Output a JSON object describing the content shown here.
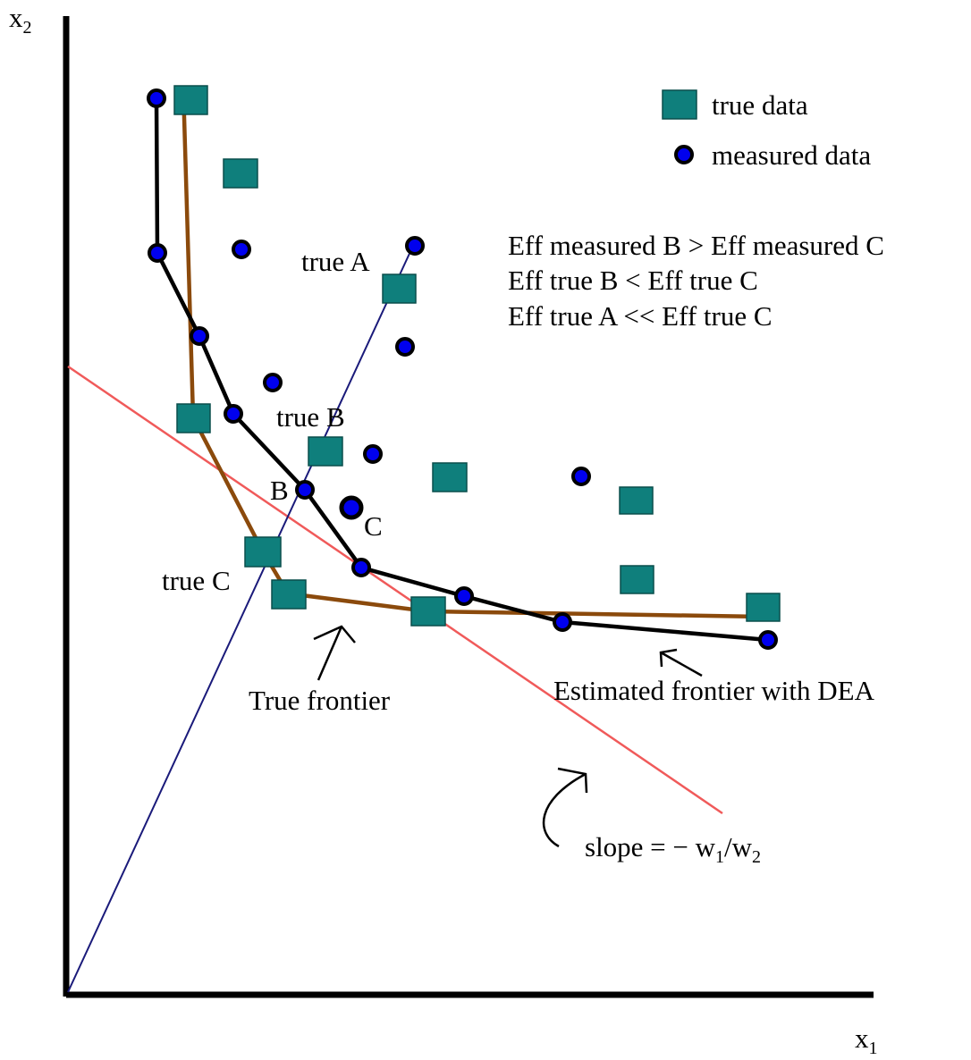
{
  "axes": {
    "x_label": "x",
    "x_subscript": "1",
    "y_label": "x",
    "y_subscript": "2"
  },
  "legend": {
    "true_data": "true data",
    "measured_data": "measured data"
  },
  "statements": [
    "Eff measured B > Eff measured C",
    "Eff true B < Eff true C",
    "Eff true A << Eff true C"
  ],
  "labels": {
    "true_a": "true A",
    "true_b": "true B",
    "true_c": "true C",
    "b": "B",
    "c": "C",
    "true_frontier": "True frontier",
    "estimated_frontier": "Estimated frontier with DEA"
  },
  "slope": {
    "prefix": "slope = − w",
    "sub1": "1",
    "mid": "/w",
    "sub2": "2"
  },
  "colors": {
    "true_data_fill": "#0f7f7c",
    "measured_data_fill": "#0000ee",
    "measured_data_outline": "#000000",
    "true_frontier": "#8b4a0c",
    "estimated_frontier": "#000000",
    "ray": "#1a1a7a",
    "isocost_line": "#f05a5a",
    "axis": "#000000"
  }
}
